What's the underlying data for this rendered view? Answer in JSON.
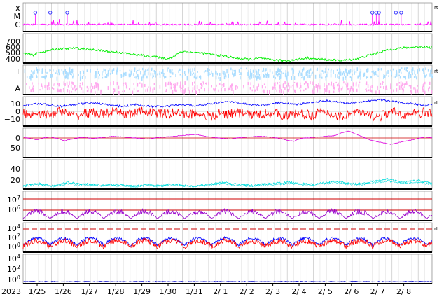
{
  "chart_data": {
    "type": "line",
    "title": "",
    "start_year_label": "2023",
    "x_ticks": [
      "1/25",
      "1/26",
      "1/27",
      "1/28",
      "1/29",
      "1/30",
      "1/31",
      "2/ 1",
      "2/ 2",
      "2/ 3",
      "2/ 4",
      "2/ 5",
      "2/ 6",
      "2/ 7",
      "2/ 8"
    ],
    "grid": true,
    "colors": {
      "xray": "#ff00ff",
      "solar_wind_speed": "#00ee00",
      "t_series": "#aaddff",
      "a_series": "#ffaaee",
      "bz": "#ff0000",
      "bt": "#0000ff",
      "dst": "#dd00dd",
      "kp": "#00dddd",
      "electron_flux": "#9900cc",
      "proton_high": "#0000ff",
      "proton_low": "#ff0000",
      "threshold": "#cc0000",
      "neutron": "#0000cc"
    },
    "panels": [
      {
        "name": "xray",
        "labels": [
          "X",
          "M",
          "C"
        ],
        "marker": "rt",
        "flare_days": [
          0.38,
          0.95,
          1.6,
          13.25,
          13.4,
          13.5,
          14.15,
          14.35
        ]
      },
      {
        "name": "solar-wind-speed",
        "yticks": [
          "700",
          "600",
          "500",
          "400"
        ],
        "ylim": [
          350,
          750
        ],
        "marker": "",
        "values": [
          480,
          470,
          460,
          490,
          505,
          520,
          535,
          540,
          545,
          550,
          555,
          545,
          540,
          535,
          530,
          520,
          510,
          505,
          500,
          490,
          480,
          470,
          460,
          455,
          445,
          440,
          430,
          420,
          410,
          430,
          490,
          510,
          500,
          495,
          490,
          480,
          470,
          460,
          455,
          445,
          430,
          420,
          410,
          405,
          400,
          410,
          420,
          400,
          395,
          390,
          385,
          380,
          390,
          400,
          410,
          420,
          410,
          405,
          400,
          395,
          390,
          388,
          390,
          395,
          400,
          420,
          440,
          460,
          480,
          500,
          520,
          535,
          545,
          555,
          560,
          565,
          570,
          575,
          565,
          560
        ]
      },
      {
        "name": "t-a",
        "labels": [
          "T",
          "A"
        ],
        "marker": "rt"
      },
      {
        "name": "magnetic-field",
        "yticks": [
          "10",
          "0",
          "−10"
        ],
        "ylim": [
          -15,
          15
        ],
        "marker": "rt",
        "bt": [
          6,
          7,
          8,
          7,
          6,
          5,
          6,
          7,
          8,
          9,
          8,
          7,
          6,
          5,
          6,
          7,
          6,
          5,
          5,
          5,
          6,
          7,
          6,
          6,
          7,
          8,
          9,
          10,
          9,
          8,
          7,
          6,
          7,
          8,
          9,
          8,
          7,
          8,
          9,
          10,
          11,
          10,
          9,
          8,
          9,
          10,
          11,
          12,
          11,
          10,
          9,
          8,
          7,
          6,
          7
        ],
        "bz": [
          -2,
          -3,
          -1,
          -4,
          -2,
          0,
          -3,
          -5,
          -2,
          -1,
          -3,
          -2,
          -1,
          -2,
          -3,
          -1,
          0,
          -1,
          -2,
          -3,
          -1,
          -2,
          -3,
          -1,
          -4,
          -6,
          -2,
          -3,
          -1,
          -2,
          -3,
          -4,
          -2,
          -1,
          -3,
          -5,
          -2,
          -3,
          -4,
          -1,
          -2,
          -3,
          -6,
          -2,
          -1,
          -3,
          -4,
          -6,
          -2,
          -1,
          -3,
          -4,
          -2,
          -1,
          -3
        ]
      },
      {
        "name": "dst",
        "yticks": [
          "0",
          "−50"
        ],
        "ylim": [
          -75,
          25
        ],
        "marker": "",
        "values": [
          -5,
          -10,
          -15,
          -8,
          -5,
          -10,
          -18,
          -12,
          -8,
          -6,
          -10,
          -8,
          -5,
          -3,
          -4,
          -6,
          -8,
          -10,
          -12,
          -8,
          -6,
          -4,
          -2,
          0,
          2,
          4,
          -2,
          -5,
          -8,
          -10,
          -12,
          -8,
          -6,
          -4,
          -2,
          -4,
          -6,
          -10,
          -15,
          -20,
          -10,
          -8,
          -6,
          -4,
          -2,
          0,
          10,
          15,
          5,
          -5,
          -15,
          -20,
          -25,
          -30,
          -25,
          -20,
          -15,
          -10,
          -5,
          -8
        ]
      },
      {
        "name": "kp",
        "yticks": [
          "40",
          "20"
        ],
        "ylim": [
          0,
          50
        ],
        "marker": "",
        "values": [
          6,
          8,
          10,
          7,
          6,
          8,
          12,
          10,
          8,
          9,
          7,
          6,
          8,
          7,
          6,
          5,
          7,
          8,
          6,
          7,
          9,
          8,
          6,
          5,
          7,
          8,
          10,
          12,
          9,
          8,
          7,
          6,
          8,
          9,
          10,
          11,
          12,
          10,
          9,
          8,
          10,
          12,
          14,
          12,
          10,
          9,
          11,
          13,
          15,
          18,
          14,
          12,
          13,
          15,
          12,
          10
        ]
      },
      {
        "name": "electron-flux",
        "yticks": [
          "10^7",
          "10^6"
        ],
        "ylim": [
          5,
          7.5
        ],
        "marker": ""
      },
      {
        "name": "proton-flux",
        "yticks": [
          "10^4",
          "10^2",
          "10^0"
        ],
        "ylim": [
          -1,
          5
        ],
        "marker": "rt"
      },
      {
        "name": "neutron",
        "yticks": [
          "10^4",
          "10^2",
          "10^0"
        ],
        "ylim": [
          -1,
          5
        ],
        "marker": ""
      }
    ]
  }
}
